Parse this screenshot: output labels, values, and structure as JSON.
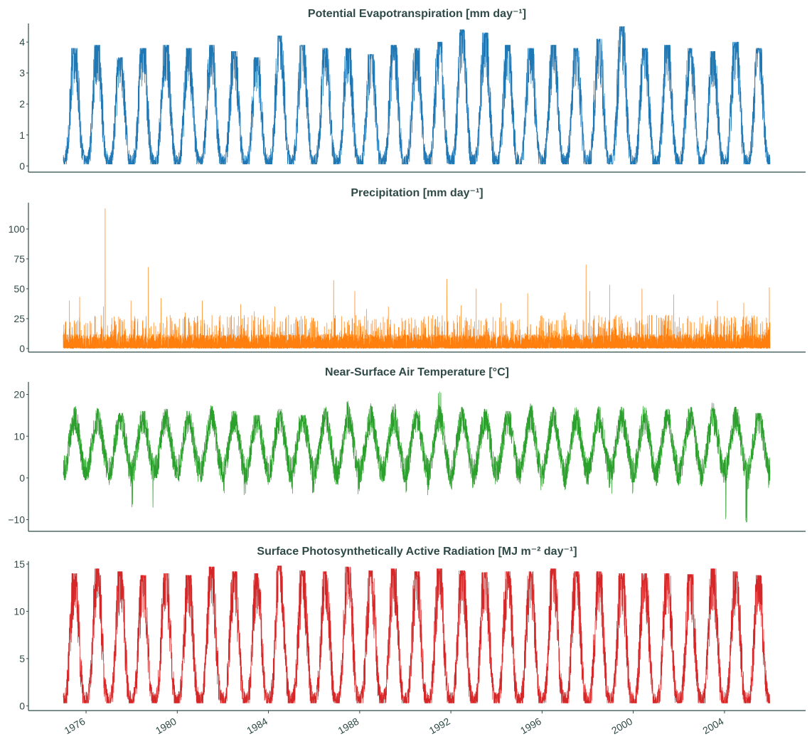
{
  "figure": {
    "x_tick_labels": [
      "1976",
      "1980",
      "1984",
      "1988",
      "1992",
      "1996",
      "2000",
      "2004"
    ]
  },
  "chart_data": [
    {
      "type": "line",
      "title": "Potential Evapotranspiration [mm day⁻¹]",
      "x_range": [
        "1975-01-01",
        "2005-12-31"
      ],
      "ylim": [
        -0.2,
        4.6
      ],
      "y_ticks": [
        0,
        1,
        2,
        3,
        4
      ],
      "y_tick_labels": [
        "0",
        "1",
        "2",
        "3",
        "4"
      ],
      "color": "#1f77b4",
      "pattern": "seasonal",
      "series": [
        {
          "years": [
            1975,
            1976,
            1977,
            1978,
            1979,
            1980,
            1981,
            1982,
            1983,
            1984,
            1985,
            1986,
            1987,
            1988,
            1989,
            1990,
            1991,
            1992,
            1993,
            1994,
            1995,
            1996,
            1997,
            1998,
            1999,
            2000,
            2001,
            2002,
            2003,
            2004,
            2005
          ],
          "annual_peak": [
            3.8,
            3.9,
            3.5,
            3.8,
            3.9,
            3.8,
            3.9,
            3.7,
            3.5,
            4.2,
            3.9,
            3.8,
            3.8,
            3.6,
            3.9,
            3.8,
            4.0,
            4.4,
            4.3,
            3.9,
            3.8,
            3.9,
            3.8,
            4.1,
            4.5,
            3.8,
            3.9,
            3.8,
            3.7,
            4.0,
            3.8
          ],
          "annual_minimum": 0.1
        }
      ]
    },
    {
      "type": "line",
      "title": "Precipitation [mm day⁻¹]",
      "x_range": [
        "1975-01-01",
        "2005-12-31"
      ],
      "ylim": [
        -3,
        122
      ],
      "y_ticks": [
        0,
        25,
        50,
        75,
        100
      ],
      "y_tick_labels": [
        "0",
        "25",
        "50",
        "75",
        "100"
      ],
      "color": "#ff7f0e",
      "pattern": "spiky",
      "series": [
        {
          "typical_daily_range": [
            0,
            20
          ],
          "extremes": [
            {
              "date": "1975-04-10",
              "value": 40
            },
            {
              "date": "1975-09-20",
              "value": 43
            },
            {
              "date": "1976-10-05",
              "value": 35
            },
            {
              "date": "1976-11-02",
              "value": 117
            },
            {
              "date": "1977-12-20",
              "value": 40
            },
            {
              "date": "1978-09-25",
              "value": 68
            },
            {
              "date": "1979-04-15",
              "value": 42
            },
            {
              "date": "1980-05-10",
              "value": 30
            },
            {
              "date": "1981-02-05",
              "value": 40
            },
            {
              "date": "1982-10-15",
              "value": 37
            },
            {
              "date": "1983-05-20",
              "value": 31
            },
            {
              "date": "1984-04-10",
              "value": 35
            },
            {
              "date": "1986-11-10",
              "value": 57
            },
            {
              "date": "1987-10-15",
              "value": 48
            },
            {
              "date": "1988-04-20",
              "value": 33
            },
            {
              "date": "1989-04-05",
              "value": 35
            },
            {
              "date": "1991-10-30",
              "value": 58
            },
            {
              "date": "1992-06-15",
              "value": 36
            },
            {
              "date": "1993-02-10",
              "value": 50
            },
            {
              "date": "1994-03-10",
              "value": 38
            },
            {
              "date": "1995-05-15",
              "value": 46
            },
            {
              "date": "1997-01-01",
              "value": 30
            },
            {
              "date": "1997-12-05",
              "value": 70
            },
            {
              "date": "1998-02-01",
              "value": 48
            },
            {
              "date": "1998-12-20",
              "value": 53
            },
            {
              "date": "2000-05-20",
              "value": 50
            },
            {
              "date": "2001-10-10",
              "value": 45
            },
            {
              "date": "2003-09-10",
              "value": 40
            },
            {
              "date": "2004-11-05",
              "value": 38
            },
            {
              "date": "2005-12-20",
              "value": 51
            }
          ]
        }
      ]
    },
    {
      "type": "line",
      "title": "Near-Surface Air Temperature [°C]",
      "x_range": [
        "1975-01-01",
        "2005-12-31"
      ],
      "ylim": [
        -12.8,
        23
      ],
      "y_ticks": [
        -10,
        0,
        10,
        20
      ],
      "y_tick_labels": [
        "−10",
        "0",
        "10",
        "20"
      ],
      "color": "#2ca02c",
      "pattern": "seasonal-band",
      "series": [
        {
          "years": [
            1975,
            1976,
            1977,
            1978,
            1979,
            1980,
            1981,
            1982,
            1983,
            1984,
            1985,
            1986,
            1987,
            1988,
            1989,
            1990,
            1991,
            1992,
            1993,
            1994,
            1995,
            1996,
            1997,
            1998,
            1999,
            2000,
            2001,
            2002,
            2003,
            2004,
            2005
          ],
          "annual_peak": [
            17.5,
            17,
            15.5,
            16,
            16.5,
            16,
            17.5,
            16,
            15,
            16.5,
            15,
            17,
            18.5,
            18,
            18,
            16.5,
            21,
            17,
            16.5,
            16,
            18,
            17,
            17,
            17.5,
            17,
            17.5,
            16.5,
            17,
            18,
            17,
            15.5
          ],
          "annual_minimum": [
            -0.5,
            -0.5,
            -2,
            -7.5,
            0,
            -1,
            -1,
            -4.5,
            -2,
            -1,
            -4,
            -1.5,
            -4,
            -1,
            -1,
            -4.5,
            -3,
            -3,
            -2,
            -1,
            -3,
            -2.5,
            -3,
            -3,
            -4.5,
            -1,
            -2,
            -2,
            -2,
            -11,
            -3
          ]
        }
      ]
    },
    {
      "type": "line",
      "title": "Surface Photosynthetically Active Radiation [MJ m⁻² day⁻¹]",
      "x_range": [
        "1975-01-01",
        "2005-12-31"
      ],
      "ylim": [
        -0.5,
        15.3
      ],
      "y_ticks": [
        0,
        5,
        10,
        15
      ],
      "y_tick_labels": [
        "0",
        "5",
        "10",
        "15"
      ],
      "color": "#d62728",
      "pattern": "seasonal",
      "series": [
        {
          "years": [
            1975,
            1976,
            1977,
            1978,
            1979,
            1980,
            1981,
            1982,
            1983,
            1984,
            1985,
            1986,
            1987,
            1988,
            1989,
            1990,
            1991,
            1992,
            1993,
            1994,
            1995,
            1996,
            1997,
            1998,
            1999,
            2000,
            2001,
            2002,
            2003,
            2004,
            2005
          ],
          "annual_peak": [
            14,
            14.5,
            14.2,
            13.8,
            14,
            13.8,
            14.7,
            14.2,
            14,
            14.8,
            14.3,
            14.2,
            14.7,
            14.3,
            14.5,
            14.2,
            14.5,
            14.3,
            14.1,
            14.2,
            14.2,
            14.5,
            14.2,
            14.2,
            14,
            14,
            14,
            13.9,
            14.5,
            14.2,
            13.8
          ],
          "annual_minimum": 0.5
        }
      ]
    }
  ]
}
